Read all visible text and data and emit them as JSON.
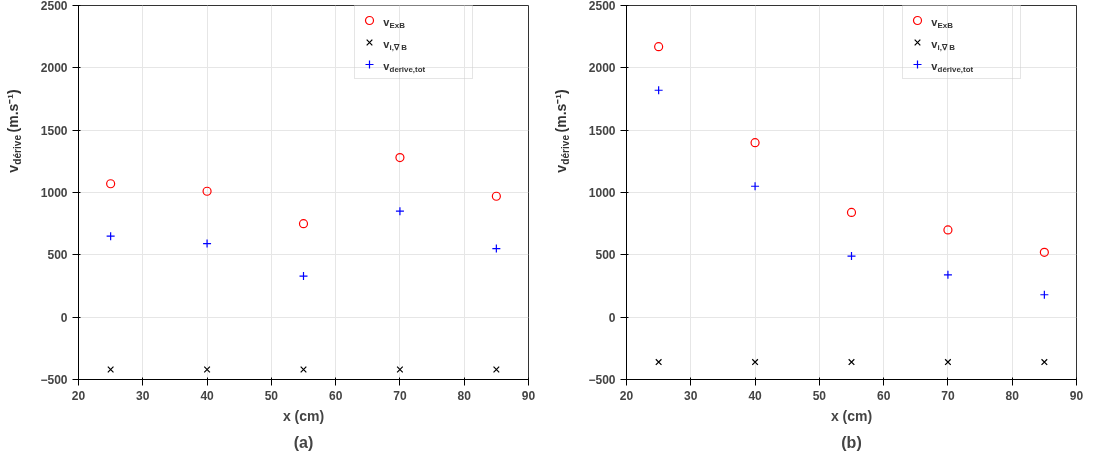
{
  "chart_data": [
    {
      "type": "scatter",
      "title": "(a)",
      "xlabel": "x (cm)",
      "ylabel": "v$_{dérive}$ (m.s⁻¹)",
      "x": [
        25,
        40,
        55,
        70,
        85
      ],
      "xlim": [
        20,
        90
      ],
      "xticks": [
        20,
        30,
        40,
        50,
        60,
        70,
        80,
        90
      ],
      "ylim": [
        -500,
        2500
      ],
      "yticks": [
        -500,
        0,
        500,
        1000,
        1500,
        2000,
        2500
      ],
      "grid": true,
      "legend": "top right",
      "series": [
        {
          "name": "v$_{ExB}$",
          "color": "#ff0000",
          "marker": "circle",
          "values": [
            1070,
            1010,
            750,
            1280,
            970
          ]
        },
        {
          "name": "v$_{i,∇ B}$",
          "color": "#000000",
          "marker": "x",
          "values": [
            -420,
            -420,
            -420,
            -420,
            -420
          ]
        },
        {
          "name": "v$_{derive,tot}$",
          "color": "#0000ff",
          "marker": "cross",
          "values": [
            650,
            590,
            330,
            850,
            550
          ]
        }
      ]
    },
    {
      "type": "scatter",
      "title": "(b)",
      "xlabel": "x (cm)",
      "ylabel": "v$_{dérive}$ (m.s⁻¹)",
      "x": [
        25,
        40,
        55,
        70,
        85
      ],
      "xlim": [
        20,
        90
      ],
      "xticks": [
        20,
        30,
        40,
        50,
        60,
        70,
        80,
        90
      ],
      "ylim": [
        -500,
        2500
      ],
      "yticks": [
        -500,
        0,
        500,
        1000,
        1500,
        2000,
        2500
      ],
      "grid": true,
      "legend": "top right",
      "series": [
        {
          "name": "v$_{ExB}$",
          "color": "#ff0000",
          "marker": "circle",
          "values": [
            2170,
            1400,
            840,
            700,
            520
          ]
        },
        {
          "name": "v$_{i,∇ B}$",
          "color": "#000000",
          "marker": "x",
          "values": [
            -360,
            -360,
            -360,
            -360,
            -360
          ]
        },
        {
          "name": "v$_{dérive,tot}$",
          "color": "#0000ff",
          "marker": "cross",
          "values": [
            1820,
            1050,
            490,
            340,
            180
          ]
        }
      ]
    }
  ]
}
